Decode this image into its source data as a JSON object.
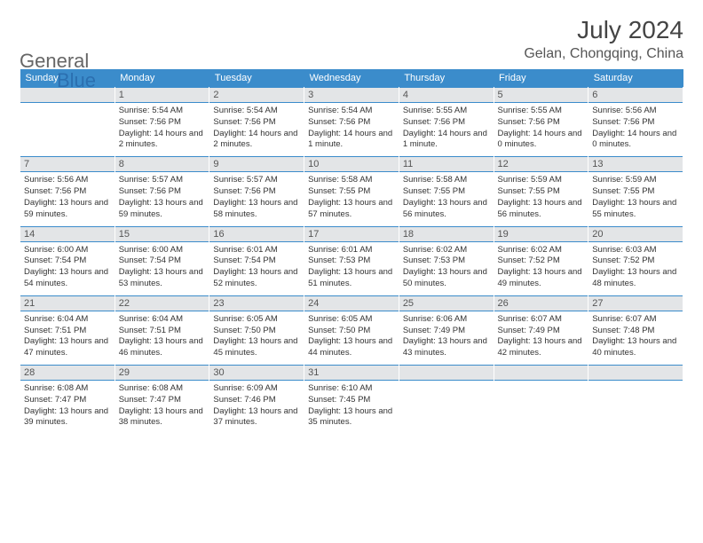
{
  "logo": {
    "word1": "General",
    "word2": "Blue"
  },
  "title": "July 2024",
  "location": "Gelan, Chongqing, China",
  "colors": {
    "header_bg": "#3b8ccb",
    "header_text": "#ffffff",
    "daynum_bg": "#e3e5e7",
    "daynum_border": "#3b8ccb",
    "body_bg": "#ffffff",
    "logo_blue": "#2b6fb0",
    "logo_gray": "#666666"
  },
  "weekday_labels": [
    "Sunday",
    "Monday",
    "Tuesday",
    "Wednesday",
    "Thursday",
    "Friday",
    "Saturday"
  ],
  "start_weekday": 1,
  "days": [
    {
      "n": 1,
      "sunrise": "5:54 AM",
      "sunset": "7:56 PM",
      "daylight": "14 hours and 2 minutes."
    },
    {
      "n": 2,
      "sunrise": "5:54 AM",
      "sunset": "7:56 PM",
      "daylight": "14 hours and 2 minutes."
    },
    {
      "n": 3,
      "sunrise": "5:54 AM",
      "sunset": "7:56 PM",
      "daylight": "14 hours and 1 minute."
    },
    {
      "n": 4,
      "sunrise": "5:55 AM",
      "sunset": "7:56 PM",
      "daylight": "14 hours and 1 minute."
    },
    {
      "n": 5,
      "sunrise": "5:55 AM",
      "sunset": "7:56 PM",
      "daylight": "14 hours and 0 minutes."
    },
    {
      "n": 6,
      "sunrise": "5:56 AM",
      "sunset": "7:56 PM",
      "daylight": "14 hours and 0 minutes."
    },
    {
      "n": 7,
      "sunrise": "5:56 AM",
      "sunset": "7:56 PM",
      "daylight": "13 hours and 59 minutes."
    },
    {
      "n": 8,
      "sunrise": "5:57 AM",
      "sunset": "7:56 PM",
      "daylight": "13 hours and 59 minutes."
    },
    {
      "n": 9,
      "sunrise": "5:57 AM",
      "sunset": "7:56 PM",
      "daylight": "13 hours and 58 minutes."
    },
    {
      "n": 10,
      "sunrise": "5:58 AM",
      "sunset": "7:55 PM",
      "daylight": "13 hours and 57 minutes."
    },
    {
      "n": 11,
      "sunrise": "5:58 AM",
      "sunset": "7:55 PM",
      "daylight": "13 hours and 56 minutes."
    },
    {
      "n": 12,
      "sunrise": "5:59 AM",
      "sunset": "7:55 PM",
      "daylight": "13 hours and 56 minutes."
    },
    {
      "n": 13,
      "sunrise": "5:59 AM",
      "sunset": "7:55 PM",
      "daylight": "13 hours and 55 minutes."
    },
    {
      "n": 14,
      "sunrise": "6:00 AM",
      "sunset": "7:54 PM",
      "daylight": "13 hours and 54 minutes."
    },
    {
      "n": 15,
      "sunrise": "6:00 AM",
      "sunset": "7:54 PM",
      "daylight": "13 hours and 53 minutes."
    },
    {
      "n": 16,
      "sunrise": "6:01 AM",
      "sunset": "7:54 PM",
      "daylight": "13 hours and 52 minutes."
    },
    {
      "n": 17,
      "sunrise": "6:01 AM",
      "sunset": "7:53 PM",
      "daylight": "13 hours and 51 minutes."
    },
    {
      "n": 18,
      "sunrise": "6:02 AM",
      "sunset": "7:53 PM",
      "daylight": "13 hours and 50 minutes."
    },
    {
      "n": 19,
      "sunrise": "6:02 AM",
      "sunset": "7:52 PM",
      "daylight": "13 hours and 49 minutes."
    },
    {
      "n": 20,
      "sunrise": "6:03 AM",
      "sunset": "7:52 PM",
      "daylight": "13 hours and 48 minutes."
    },
    {
      "n": 21,
      "sunrise": "6:04 AM",
      "sunset": "7:51 PM",
      "daylight": "13 hours and 47 minutes."
    },
    {
      "n": 22,
      "sunrise": "6:04 AM",
      "sunset": "7:51 PM",
      "daylight": "13 hours and 46 minutes."
    },
    {
      "n": 23,
      "sunrise": "6:05 AM",
      "sunset": "7:50 PM",
      "daylight": "13 hours and 45 minutes."
    },
    {
      "n": 24,
      "sunrise": "6:05 AM",
      "sunset": "7:50 PM",
      "daylight": "13 hours and 44 minutes."
    },
    {
      "n": 25,
      "sunrise": "6:06 AM",
      "sunset": "7:49 PM",
      "daylight": "13 hours and 43 minutes."
    },
    {
      "n": 26,
      "sunrise": "6:07 AM",
      "sunset": "7:49 PM",
      "daylight": "13 hours and 42 minutes."
    },
    {
      "n": 27,
      "sunrise": "6:07 AM",
      "sunset": "7:48 PM",
      "daylight": "13 hours and 40 minutes."
    },
    {
      "n": 28,
      "sunrise": "6:08 AM",
      "sunset": "7:47 PM",
      "daylight": "13 hours and 39 minutes."
    },
    {
      "n": 29,
      "sunrise": "6:08 AM",
      "sunset": "7:47 PM",
      "daylight": "13 hours and 38 minutes."
    },
    {
      "n": 30,
      "sunrise": "6:09 AM",
      "sunset": "7:46 PM",
      "daylight": "13 hours and 37 minutes."
    },
    {
      "n": 31,
      "sunrise": "6:10 AM",
      "sunset": "7:45 PM",
      "daylight": "13 hours and 35 minutes."
    }
  ],
  "labels": {
    "sunrise": "Sunrise:",
    "sunset": "Sunset:",
    "daylight": "Daylight:"
  }
}
